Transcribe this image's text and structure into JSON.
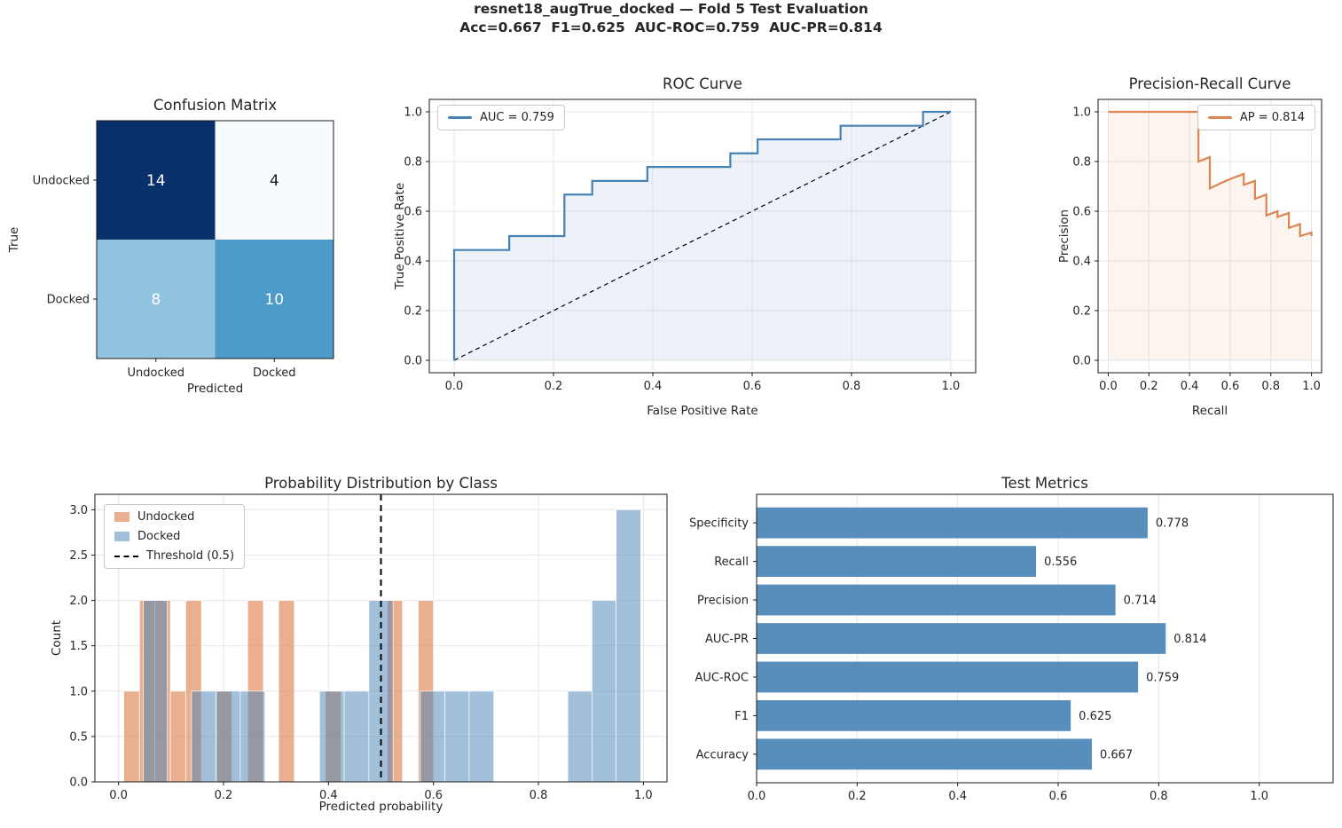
{
  "figure": {
    "suptitle_line1": "resnet18_augTrue_docked — Fold 5 Test Evaluation",
    "suptitle_line2": "Acc=0.667  F1=0.625  AUC-ROC=0.759  AUC-PR=0.814"
  },
  "chart_data": [
    {
      "id": "confusion-matrix",
      "type": "heatmap",
      "title": "Confusion Matrix",
      "xlabel": "Predicted",
      "ylabel": "True",
      "x_ticklabels": [
        "Undocked",
        "Docked"
      ],
      "y_ticklabels": [
        "Undocked",
        "Docked"
      ],
      "matrix": [
        [
          14,
          4
        ],
        [
          8,
          10
        ]
      ],
      "colormap": "Blues",
      "cell_colors": [
        [
          "#08306B",
          "#F7FBFF"
        ],
        [
          "#92C4DF",
          "#4D9BCB"
        ]
      ],
      "cell_text_colors": [
        [
          "#FFFFFF",
          "#1A1A1A"
        ],
        [
          "#FFFFFF",
          "#FFFFFF"
        ]
      ]
    },
    {
      "id": "roc-curve",
      "type": "line",
      "title": "ROC Curve",
      "xlabel": "False Positive Rate",
      "ylabel": "True Positive Rate",
      "legend_label": "AUC = 0.759",
      "legend_position": "upper left",
      "line_color": "#4682B4",
      "fill_color": "rgba(70,130,180,0.10)",
      "diagonal_reference": {
        "from": [
          0,
          0
        ],
        "to": [
          1,
          1
        ],
        "style": "dashed",
        "color": "#000000"
      },
      "xlim": [
        -0.05,
        1.05
      ],
      "ylim": [
        -0.05,
        1.05
      ],
      "xticks": [
        0.0,
        0.2,
        0.4,
        0.6,
        0.8,
        1.0
      ],
      "yticks": [
        0.0,
        0.2,
        0.4,
        0.6,
        0.8,
        1.0
      ],
      "grid": true,
      "points": [
        [
          0,
          0
        ],
        [
          0,
          0.444
        ],
        [
          0.111,
          0.444
        ],
        [
          0.111,
          0.5
        ],
        [
          0.222,
          0.5
        ],
        [
          0.222,
          0.667
        ],
        [
          0.278,
          0.667
        ],
        [
          0.278,
          0.722
        ],
        [
          0.389,
          0.722
        ],
        [
          0.389,
          0.778
        ],
        [
          0.556,
          0.778
        ],
        [
          0.556,
          0.833
        ],
        [
          0.611,
          0.833
        ],
        [
          0.611,
          0.889
        ],
        [
          0.778,
          0.889
        ],
        [
          0.778,
          0.944
        ],
        [
          0.944,
          0.944
        ],
        [
          0.944,
          1.0
        ],
        [
          1.0,
          1.0
        ]
      ]
    },
    {
      "id": "pr-curve",
      "type": "line",
      "title": "Precision-Recall Curve",
      "xlabel": "Recall",
      "ylabel": "Precision",
      "legend_label": "AP = 0.814",
      "legend_position": "upper right",
      "line_color": "#DD8452",
      "fill_color": "rgba(221,132,82,0.09)",
      "xlim": [
        -0.05,
        1.05
      ],
      "ylim": [
        -0.05,
        1.05
      ],
      "xticks": [
        0.0,
        0.2,
        0.4,
        0.6,
        0.8,
        1.0
      ],
      "yticks": [
        0.0,
        0.2,
        0.4,
        0.6,
        0.8,
        1.0
      ],
      "grid": true,
      "points": [
        [
          0,
          1
        ],
        [
          0.444,
          1
        ],
        [
          0.444,
          0.8
        ],
        [
          0.5,
          0.818
        ],
        [
          0.5,
          0.692
        ],
        [
          0.556,
          0.714
        ],
        [
          0.611,
          0.733
        ],
        [
          0.667,
          0.75
        ],
        [
          0.667,
          0.706
        ],
        [
          0.722,
          0.722
        ],
        [
          0.722,
          0.65
        ],
        [
          0.778,
          0.667
        ],
        [
          0.778,
          0.583
        ],
        [
          0.833,
          0.6
        ],
        [
          0.833,
          0.577
        ],
        [
          0.889,
          0.593
        ],
        [
          0.889,
          0.533
        ],
        [
          0.944,
          0.548
        ],
        [
          0.944,
          0.5
        ],
        [
          1.0,
          0.514
        ],
        [
          1.0,
          0.5
        ]
      ]
    },
    {
      "id": "probability-histogram",
      "type": "bar",
      "title": "Probability Distribution by Class",
      "xlabel": "Predicted probability",
      "ylabel": "Count",
      "xlim": [
        -0.045,
        1.045
      ],
      "ylim": [
        0,
        3.17
      ],
      "xticks": [
        0.0,
        0.2,
        0.4,
        0.6,
        0.8,
        1.0
      ],
      "yticks": [
        0.0,
        0.5,
        1.0,
        1.5,
        2.0,
        2.5,
        3.0
      ],
      "grid": true,
      "threshold_line": {
        "x": 0.5,
        "label": "Threshold (0.5)",
        "style": "dashed",
        "color": "#000000"
      },
      "series": [
        {
          "name": "Undocked",
          "color": "#DD8452",
          "alpha": 0.65,
          "bars": [
            [
              0.01,
              0.04,
              1
            ],
            [
              0.04,
              0.069,
              2
            ],
            [
              0.069,
              0.099,
              2
            ],
            [
              0.099,
              0.128,
              1
            ],
            [
              0.128,
              0.158,
              2
            ],
            [
              0.187,
              0.216,
              1
            ],
            [
              0.246,
              0.276,
              2
            ],
            [
              0.305,
              0.335,
              2
            ],
            [
              0.394,
              0.424,
              1
            ],
            [
              0.512,
              0.541,
              2
            ],
            [
              0.571,
              0.6,
              2
            ]
          ]
        },
        {
          "name": "Docked",
          "color": "#4682B4",
          "alpha": 0.5,
          "bars": [
            [
              0.047,
              0.093,
              2
            ],
            [
              0.139,
              0.186,
              1
            ],
            [
              0.186,
              0.232,
              1
            ],
            [
              0.232,
              0.279,
              1
            ],
            [
              0.383,
              0.43,
              1
            ],
            [
              0.43,
              0.477,
              1
            ],
            [
              0.477,
              0.523,
              2
            ],
            [
              0.575,
              0.622,
              1
            ],
            [
              0.622,
              0.668,
              1
            ],
            [
              0.668,
              0.715,
              1
            ],
            [
              0.856,
              0.902,
              1
            ],
            [
              0.902,
              0.948,
              2
            ],
            [
              0.948,
              0.995,
              3
            ]
          ]
        }
      ]
    },
    {
      "id": "test-metrics",
      "type": "bar-horizontal",
      "title": "Test Metrics",
      "categories": [
        "Specificity",
        "Recall",
        "Precision",
        "AUC-PR",
        "AUC-ROC",
        "F1",
        "Accuracy"
      ],
      "values": [
        0.778,
        0.556,
        0.714,
        0.814,
        0.759,
        0.625,
        0.667
      ],
      "value_labels": [
        "0.778",
        "0.556",
        "0.714",
        "0.814",
        "0.759",
        "0.625",
        "0.667"
      ],
      "bar_color": "#4682B4",
      "bar_alpha": 0.9,
      "xlim": [
        0,
        1.147
      ],
      "xticks": [
        0.0,
        0.2,
        0.4,
        0.6,
        0.8,
        1.0
      ],
      "grid": true
    }
  ]
}
